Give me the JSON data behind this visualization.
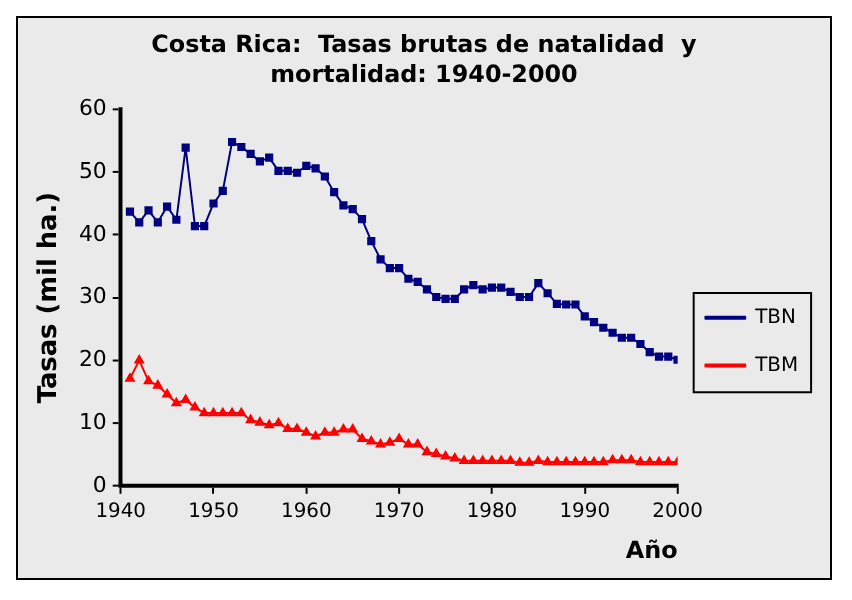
{
  "chart_data": {
    "type": "line",
    "title": "Costa Rica:  Tasas brutas de natalidad  y mortalidad: 1940-2000",
    "xlabel": "Año",
    "ylabel": "Tasas (mil ha.)",
    "x": [
      1941,
      1942,
      1943,
      1944,
      1945,
      1946,
      1947,
      1948,
      1949,
      1950,
      1951,
      1952,
      1953,
      1954,
      1955,
      1956,
      1957,
      1958,
      1959,
      1960,
      1961,
      1962,
      1963,
      1964,
      1965,
      1966,
      1967,
      1968,
      1969,
      1970,
      1971,
      1972,
      1973,
      1974,
      1975,
      1976,
      1977,
      1978,
      1979,
      1980,
      1981,
      1982,
      1983,
      1984,
      1985,
      1986,
      1987,
      1988,
      1989,
      1990,
      1991,
      1992,
      1993,
      1994,
      1995,
      1996,
      1997,
      1998,
      1999,
      2000
    ],
    "series": [
      {
        "name": "TBN",
        "color": "#000080",
        "marker": "square",
        "values": [
          43.7,
          42,
          43.9,
          42,
          44.5,
          42.4,
          53.9,
          41.4,
          41.4,
          45,
          47,
          54.8,
          54,
          52.9,
          51.7,
          52.3,
          50.2,
          50.2,
          49.9,
          51,
          50.6,
          49.3,
          46.8,
          44.7,
          44.1,
          42.5,
          39,
          36.1,
          34.7,
          34.7,
          33,
          32.5,
          31.3,
          30.1,
          29.8,
          29.8,
          31.3,
          32,
          31.3,
          31.6,
          31.6,
          30.9,
          30.1,
          30.1,
          32.3,
          30.7,
          29,
          28.9,
          28.9,
          27,
          26.1,
          25.2,
          24.4,
          23.6,
          23.6,
          22.6,
          21.3,
          20.6,
          20.6,
          20.1
        ]
      },
      {
        "name": "TBM",
        "color": "#ff0000",
        "marker": "triangle",
        "values": [
          17.1,
          20,
          16.7,
          16,
          14.6,
          13.2,
          13.7,
          12.5,
          11.6,
          11.6,
          11.6,
          11.6,
          11.6,
          10.5,
          10.1,
          9.7,
          10,
          9.1,
          9.1,
          8.5,
          7.9,
          8.5,
          8.5,
          9,
          9,
          7.5,
          7.1,
          6.6,
          6.9,
          7.5,
          6.6,
          6.6,
          5.4,
          5.1,
          4.7,
          4.4,
          4,
          4,
          4,
          4,
          4,
          4,
          3.7,
          3.7,
          4,
          3.8,
          3.8,
          3.8,
          3.8,
          3.8,
          3.8,
          3.8,
          4.1,
          4.1,
          4.1,
          3.8,
          3.8,
          3.8,
          3.8,
          3.8
        ]
      }
    ],
    "xlim": [
      1940,
      2000
    ],
    "xticks": [
      1940,
      1950,
      1960,
      1970,
      1980,
      1990,
      2000
    ],
    "ylim": [
      0,
      60
    ],
    "yticks": [
      0,
      10,
      20,
      30,
      40,
      50,
      60
    ],
    "grid": false,
    "legend": "right",
    "line_style": "solid"
  }
}
